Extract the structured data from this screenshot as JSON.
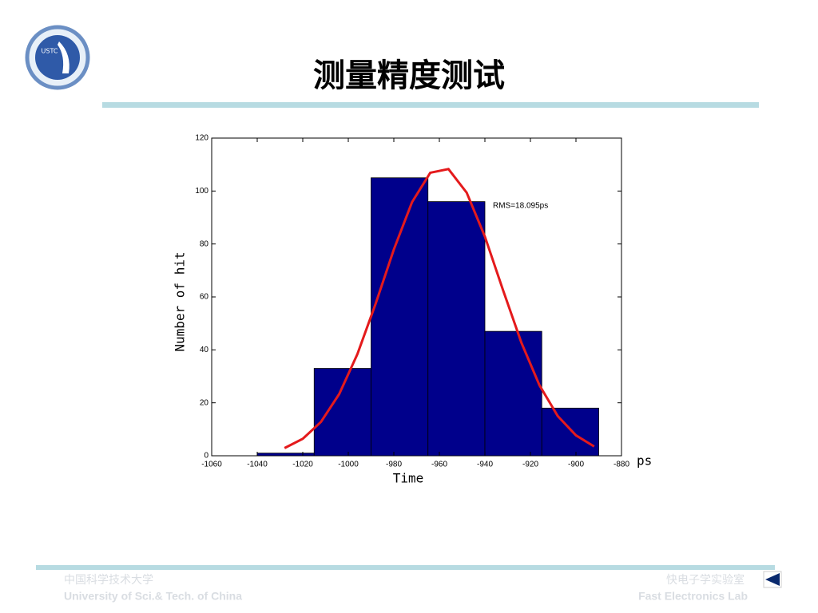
{
  "slide": {
    "title": "测量精度测试",
    "logo_text": "USTC",
    "footer_left": [
      "中国科学技术大学",
      "University of Sci.& Tech. of China"
    ],
    "footer_right": [
      "快电子学实验室",
      "Fast Electronics Lab"
    ]
  },
  "chart_data": {
    "type": "histogram",
    "bins": [
      -1040,
      -1015,
      -990,
      -965,
      -940,
      -915,
      -890
    ],
    "values": [
      1,
      33,
      105,
      96,
      47,
      18
    ],
    "color": "#00008b",
    "xlim": [
      -1060,
      -880
    ],
    "xticks": [
      -1060,
      -1040,
      -1020,
      -1000,
      -980,
      -960,
      -940,
      -920,
      -900,
      -880
    ],
    "ylim": [
      0,
      120
    ],
    "yticks": [
      0,
      20,
      40,
      60,
      80,
      100,
      120
    ],
    "xlabel": "Time",
    "ylabel": "Number of hit",
    "x_unit": "ps",
    "annotation": "RMS=18.095ps",
    "fit": {
      "type": "line",
      "color": "#e41a1c",
      "x": [
        -1028,
        -1020,
        -1012,
        -1004,
        -996,
        -988,
        -980,
        -972,
        -964,
        -956,
        -948,
        -940,
        -932,
        -924,
        -916,
        -908,
        -900,
        -892
      ],
      "values": [
        2.9,
        6.4,
        12.8,
        23.3,
        38.4,
        57.4,
        77.9,
        95.8,
        106.9,
        108.3,
        99.4,
        82.8,
        62.5,
        42.8,
        26.6,
        15.0,
        7.7,
        3.5
      ]
    }
  }
}
